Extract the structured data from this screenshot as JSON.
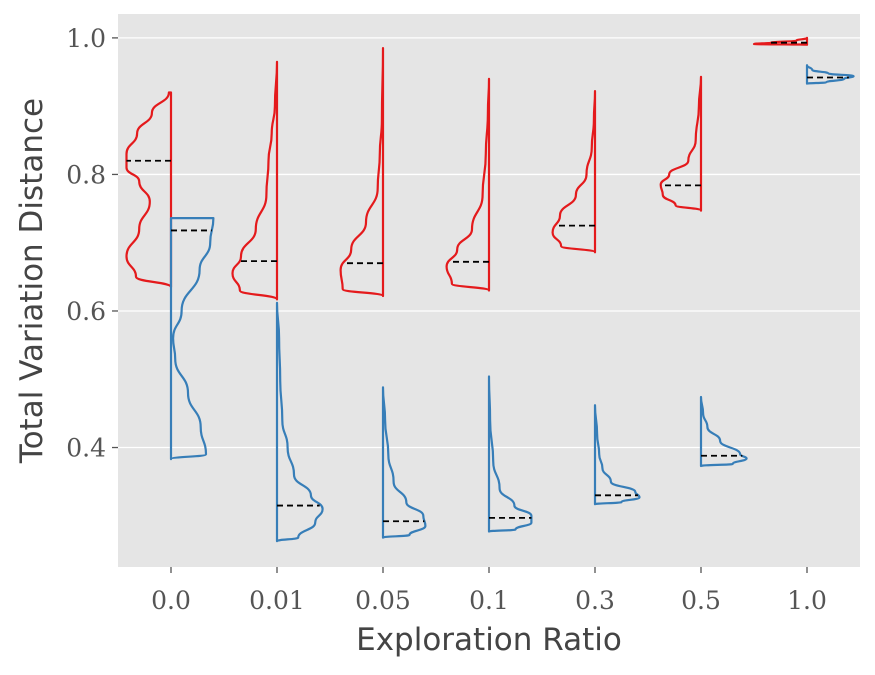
{
  "chart_data": {
    "type": "violin",
    "title": "",
    "xlabel": "Exploration Ratio",
    "ylabel": "Total Variation Distance",
    "categories": [
      "0.0",
      "0.01",
      "0.05",
      "0.1",
      "0.3",
      "0.5",
      "1.0"
    ],
    "yticks": [
      "0.4",
      "0.6",
      "0.8",
      "1.0"
    ],
    "ytick_values": [
      0.4,
      0.6,
      0.8,
      1.0
    ],
    "ylim": [
      0.225,
      1.035
    ],
    "grid": true,
    "colors": {
      "left": "#e41a1c",
      "right": "#377eb8",
      "median": "#000000",
      "background": "#e5e5e5"
    },
    "series": [
      {
        "side": "left",
        "violins": [
          {
            "category": "0.0",
            "median": 0.82,
            "profile": [
              [
                0.635,
                0.0
              ],
              [
                0.65,
                0.33
              ],
              [
                0.68,
                0.42
              ],
              [
                0.72,
                0.3
              ],
              [
                0.76,
                0.2
              ],
              [
                0.79,
                0.3
              ],
              [
                0.81,
                0.42
              ],
              [
                0.83,
                0.42
              ],
              [
                0.86,
                0.32
              ],
              [
                0.89,
                0.18
              ],
              [
                0.92,
                0.02
              ]
            ]
          },
          {
            "category": "0.01",
            "median": 0.673,
            "profile": [
              [
                0.617,
                0.0
              ],
              [
                0.63,
                0.35
              ],
              [
                0.655,
                0.42
              ],
              [
                0.68,
                0.34
              ],
              [
                0.72,
                0.2
              ],
              [
                0.77,
                0.1
              ],
              [
                0.82,
                0.08
              ],
              [
                0.86,
                0.05
              ],
              [
                0.9,
                0.02
              ],
              [
                0.965,
                0.0
              ]
            ]
          },
          {
            "category": "0.05",
            "median": 0.67,
            "profile": [
              [
                0.622,
                0.0
              ],
              [
                0.632,
                0.38
              ],
              [
                0.66,
                0.4
              ],
              [
                0.69,
                0.3
              ],
              [
                0.73,
                0.16
              ],
              [
                0.78,
                0.05
              ],
              [
                0.83,
                0.03
              ],
              [
                0.88,
                0.01
              ],
              [
                0.985,
                0.0
              ]
            ]
          },
          {
            "category": "0.1",
            "median": 0.672,
            "profile": [
              [
                0.63,
                0.0
              ],
              [
                0.64,
                0.35
              ],
              [
                0.665,
                0.4
              ],
              [
                0.69,
                0.3
              ],
              [
                0.72,
                0.16
              ],
              [
                0.77,
                0.06
              ],
              [
                0.83,
                0.03
              ],
              [
                0.89,
                0.01
              ],
              [
                0.94,
                0.0
              ]
            ]
          },
          {
            "category": "0.3",
            "median": 0.725,
            "profile": [
              [
                0.686,
                0.0
              ],
              [
                0.695,
                0.32
              ],
              [
                0.715,
                0.4
              ],
              [
                0.74,
                0.33
              ],
              [
                0.77,
                0.18
              ],
              [
                0.8,
                0.08
              ],
              [
                0.84,
                0.03
              ],
              [
                0.88,
                0.01
              ],
              [
                0.922,
                0.0
              ]
            ]
          },
          {
            "category": "0.5",
            "median": 0.784,
            "profile": [
              [
                0.747,
                0.0
              ],
              [
                0.755,
                0.24
              ],
              [
                0.77,
                0.36
              ],
              [
                0.785,
                0.38
              ],
              [
                0.8,
                0.3
              ],
              [
                0.82,
                0.12
              ],
              [
                0.85,
                0.05
              ],
              [
                0.9,
                0.02
              ],
              [
                0.943,
                0.0
              ]
            ]
          },
          {
            "category": "1.0",
            "median": 0.993,
            "profile": [
              [
                0.99,
                0.0
              ],
              [
                0.991,
                0.5
              ],
              [
                0.993,
                0.34
              ],
              [
                0.996,
                0.1
              ],
              [
                1.0,
                0.0
              ]
            ]
          }
        ]
      },
      {
        "side": "right",
        "violins": [
          {
            "category": "0.0",
            "median": 0.718,
            "profile": [
              [
                0.383,
                0.0
              ],
              [
                0.39,
                0.33
              ],
              [
                0.43,
                0.28
              ],
              [
                0.48,
                0.16
              ],
              [
                0.53,
                0.04
              ],
              [
                0.56,
                0.02
              ],
              [
                0.6,
                0.1
              ],
              [
                0.66,
                0.27
              ],
              [
                0.7,
                0.37
              ],
              [
                0.736,
                0.4
              ]
            ]
          },
          {
            "category": "0.01",
            "median": 0.315,
            "profile": [
              [
                0.263,
                0.0
              ],
              [
                0.268,
                0.2
              ],
              [
                0.29,
                0.36
              ],
              [
                0.31,
                0.43
              ],
              [
                0.33,
                0.32
              ],
              [
                0.36,
                0.16
              ],
              [
                0.4,
                0.1
              ],
              [
                0.44,
                0.05
              ],
              [
                0.5,
                0.03
              ],
              [
                0.56,
                0.02
              ],
              [
                0.612,
                0.0
              ]
            ]
          },
          {
            "category": "0.05",
            "median": 0.292,
            "profile": [
              [
                0.268,
                0.0
              ],
              [
                0.272,
                0.25
              ],
              [
                0.285,
                0.4
              ],
              [
                0.3,
                0.38
              ],
              [
                0.32,
                0.22
              ],
              [
                0.35,
                0.1
              ],
              [
                0.39,
                0.05
              ],
              [
                0.44,
                0.02
              ],
              [
                0.488,
                0.0
              ]
            ]
          },
          {
            "category": "0.1",
            "median": 0.297,
            "profile": [
              [
                0.277,
                0.0
              ],
              [
                0.28,
                0.25
              ],
              [
                0.29,
                0.4
              ],
              [
                0.3,
                0.4
              ],
              [
                0.315,
                0.24
              ],
              [
                0.34,
                0.1
              ],
              [
                0.38,
                0.04
              ],
              [
                0.44,
                0.01
              ],
              [
                0.504,
                0.0
              ]
            ]
          },
          {
            "category": "0.3",
            "median": 0.33,
            "profile": [
              [
                0.317,
                0.0
              ],
              [
                0.32,
                0.25
              ],
              [
                0.327,
                0.42
              ],
              [
                0.335,
                0.38
              ],
              [
                0.35,
                0.15
              ],
              [
                0.37,
                0.07
              ],
              [
                0.39,
                0.04
              ],
              [
                0.42,
                0.02
              ],
              [
                0.462,
                0.0
              ]
            ]
          },
          {
            "category": "0.5",
            "median": 0.388,
            "profile": [
              [
                0.373,
                0.0
              ],
              [
                0.376,
                0.3
              ],
              [
                0.384,
                0.43
              ],
              [
                0.39,
                0.37
              ],
              [
                0.41,
                0.18
              ],
              [
                0.43,
                0.06
              ],
              [
                0.45,
                0.02
              ],
              [
                0.474,
                0.0
              ]
            ]
          },
          {
            "category": "1.0",
            "median": 0.942,
            "profile": [
              [
                0.933,
                0.0
              ],
              [
                0.935,
                0.18
              ],
              [
                0.94,
                0.35
              ],
              [
                0.944,
                0.44
              ],
              [
                0.948,
                0.2
              ],
              [
                0.953,
                0.05
              ],
              [
                0.96,
                0.0
              ]
            ]
          }
        ]
      }
    ]
  }
}
